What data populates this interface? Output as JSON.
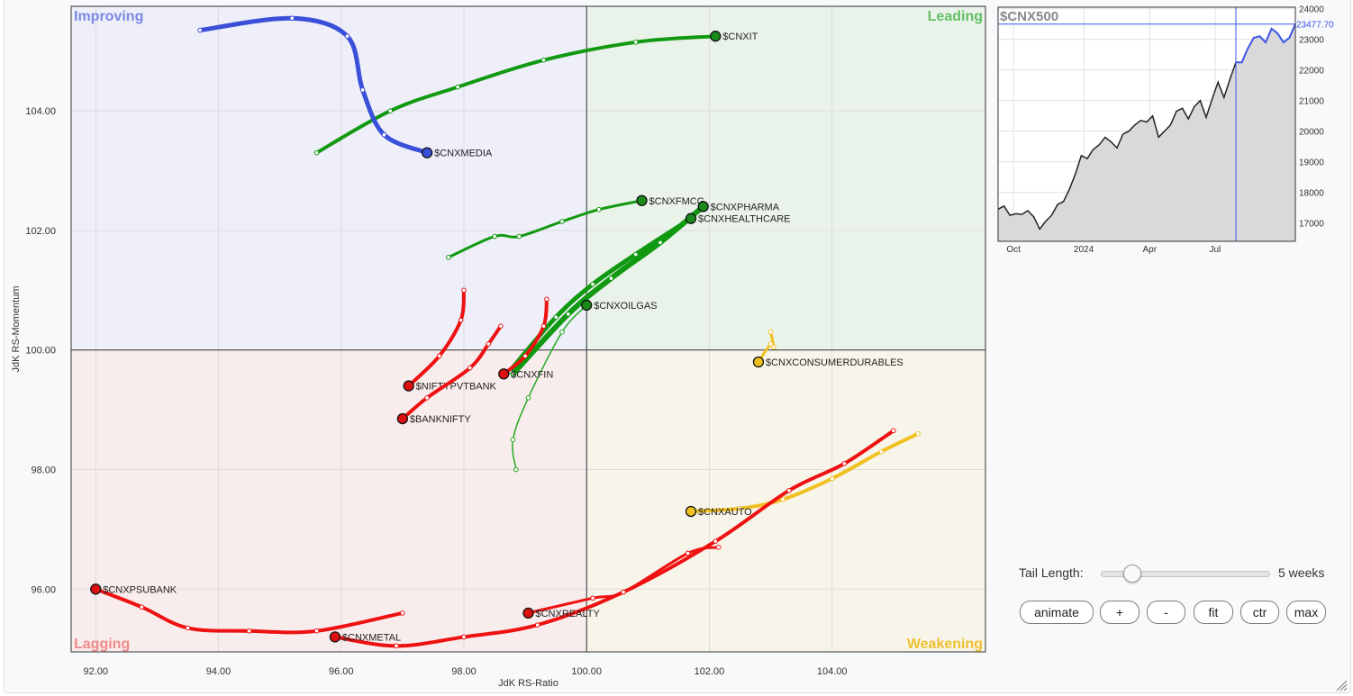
{
  "chart_data": {
    "type": "scatter",
    "subtype": "relative-rotation-graph",
    "xlabel": "JdK RS-Ratio",
    "ylabel": "JdK RS-Momentum",
    "xlim": [
      91.6,
      106.5
    ],
    "ylim": [
      94.95,
      105.75
    ],
    "x_ticks": [
      92,
      94,
      96,
      98,
      100,
      102,
      104
    ],
    "y_ticks": [
      96,
      98,
      100,
      102,
      104
    ],
    "x_tick_labels": [
      "92.00",
      "94.00",
      "96.00",
      "98.00",
      "100.00",
      "102.00",
      "104.00"
    ],
    "y_tick_labels": [
      "96.00",
      "98.00",
      "100.00",
      "102.00",
      "104.00"
    ],
    "center": [
      100,
      100
    ],
    "grid": true,
    "quadrants": [
      {
        "name": "Improving",
        "position": "top-left",
        "fill": "#eeeff9",
        "text_color": "#7b88e6"
      },
      {
        "name": "Leading",
        "position": "top-right",
        "fill": "#eaf3ea",
        "text_color": "#64c064"
      },
      {
        "name": "Lagging",
        "position": "bottom-left",
        "fill": "#f9ecec",
        "text_color": "#f08a8a"
      },
      {
        "name": "Weakening",
        "position": "bottom-right",
        "fill": "#f7f5ea",
        "text_color": "#f0c030"
      }
    ],
    "series": [
      {
        "name": "$CNXIT",
        "color": "#119911",
        "dot": "#1a8a1a",
        "width": 4,
        "points": [
          [
            95.6,
            103.3
          ],
          [
            96.8,
            104.0
          ],
          [
            97.9,
            104.4
          ],
          [
            99.3,
            104.85
          ],
          [
            100.8,
            105.15
          ],
          [
            102.1,
            105.25
          ]
        ]
      },
      {
        "name": "$CNXMEDIA",
        "color": "#3a50d8",
        "dot": "#3a50d8",
        "width": 5,
        "points": [
          [
            93.7,
            105.35
          ],
          [
            95.2,
            105.55
          ],
          [
            96.1,
            105.25
          ],
          [
            96.35,
            104.35
          ],
          [
            96.7,
            103.6
          ],
          [
            97.4,
            103.3
          ]
        ]
      },
      {
        "name": "$CNXFMCG",
        "color": "#119911",
        "dot": "#1a8a1a",
        "width": 3,
        "points": [
          [
            97.75,
            101.55
          ],
          [
            98.5,
            101.9
          ],
          [
            98.9,
            101.9
          ],
          [
            99.6,
            102.15
          ],
          [
            100.2,
            102.35
          ],
          [
            100.9,
            102.5
          ]
        ]
      },
      {
        "name": "$CNXPHARMA",
        "color": "#119911",
        "dot": "#1a8a1a",
        "width": 6,
        "points": [
          [
            98.8,
            99.6
          ],
          [
            99.7,
            100.6
          ],
          [
            100.4,
            101.2
          ],
          [
            101.2,
            101.8
          ],
          [
            101.9,
            102.4
          ]
        ]
      },
      {
        "name": "$CNXHEALTHCARE",
        "color": "#119911",
        "dot": "#1a8a1a",
        "width": 5,
        "points": [
          [
            98.75,
            99.65
          ],
          [
            99.5,
            100.55
          ],
          [
            100.1,
            101.1
          ],
          [
            100.8,
            101.6
          ],
          [
            101.7,
            102.2
          ]
        ]
      },
      {
        "name": "$CNXOILGAS",
        "color": "#22aa22",
        "dot": "#1a8a1a",
        "width": 1.5,
        "points": [
          [
            98.85,
            98.0
          ],
          [
            98.8,
            98.5
          ],
          [
            99.05,
            99.2
          ],
          [
            99.6,
            100.3
          ],
          [
            100.0,
            100.75
          ]
        ]
      },
      {
        "name": "$CNXFIN",
        "color": "#ee1111",
        "dot": "#dd1111",
        "width": 4,
        "points": [
          [
            99.35,
            100.85
          ],
          [
            99.3,
            100.4
          ],
          [
            99.0,
            99.9
          ],
          [
            98.65,
            99.6
          ]
        ]
      },
      {
        "name": "$NIFTYPVTBANK",
        "color": "#ee1111",
        "dot": "#dd1111",
        "width": 4,
        "points": [
          [
            98.0,
            101.0
          ],
          [
            97.95,
            100.5
          ],
          [
            97.6,
            99.9
          ],
          [
            97.1,
            99.4
          ]
        ]
      },
      {
        "name": "$BANKNIFTY",
        "color": "#ee1111",
        "dot": "#dd1111",
        "width": 4,
        "points": [
          [
            98.6,
            100.4
          ],
          [
            98.4,
            100.1
          ],
          [
            98.1,
            99.7
          ],
          [
            97.4,
            99.2
          ],
          [
            97.0,
            98.85
          ]
        ]
      },
      {
        "name": "$CNXCONSUMERDURABLES",
        "color": "#f0c020",
        "dot": "#f0c020",
        "width": 3,
        "points": [
          [
            103.0,
            100.3
          ],
          [
            103.05,
            100.05
          ],
          [
            103.0,
            100.1
          ],
          [
            102.8,
            99.8
          ]
        ]
      },
      {
        "name": "$CNXAUTO",
        "color": "#f0c020",
        "dot": "#f0c020",
        "width": 4,
        "points": [
          [
            105.4,
            98.6
          ],
          [
            104.8,
            98.3
          ],
          [
            104.0,
            97.85
          ],
          [
            103.2,
            97.5
          ],
          [
            102.5,
            97.35
          ],
          [
            101.7,
            97.3
          ]
        ]
      },
      {
        "name": "$CNXPSUBANK",
        "color": "#ee1111",
        "dot": "#dd1111",
        "width": 4,
        "points": [
          [
            97.0,
            95.6
          ],
          [
            95.6,
            95.3
          ],
          [
            94.5,
            95.3
          ],
          [
            93.5,
            95.35
          ],
          [
            92.75,
            95.7
          ],
          [
            92.0,
            96.0
          ]
        ]
      },
      {
        "name": "$CNXMETAL",
        "color": "#ee1111",
        "dot": "#dd1111",
        "width": 4,
        "points": [
          [
            105.0,
            98.65
          ],
          [
            104.2,
            98.1
          ],
          [
            103.3,
            97.65
          ],
          [
            102.1,
            96.8
          ],
          [
            100.6,
            95.95
          ],
          [
            99.2,
            95.4
          ],
          [
            98.0,
            95.2
          ],
          [
            96.9,
            95.05
          ],
          [
            95.9,
            95.2
          ]
        ]
      },
      {
        "name": "$CNXREALTY",
        "color": "#ee1111",
        "dot": "#dd1111",
        "width": 3,
        "points": [
          [
            102.15,
            96.7
          ],
          [
            101.65,
            96.6
          ],
          [
            100.6,
            95.95
          ],
          [
            100.1,
            95.85
          ],
          [
            99.05,
            95.6
          ]
        ]
      }
    ],
    "mini_chart": {
      "title": "$CNX500",
      "last_value": "23477.70",
      "y_ticks": [
        17000,
        18000,
        19000,
        20000,
        21000,
        22000,
        23000,
        24000
      ],
      "y_tick_labels": [
        "17000",
        "18000",
        "19000",
        "20000",
        "21000",
        "22000",
        "23000",
        "24000"
      ],
      "ylim": [
        16400,
        24050
      ],
      "x_labels": [
        "Oct",
        "2024",
        "Apr",
        "Jul"
      ],
      "x_label_index": [
        2.6,
        14.4,
        25.5,
        36.5
      ],
      "tail_start_index": 40,
      "values": [
        17450,
        17550,
        17250,
        17300,
        17280,
        17400,
        17200,
        16800,
        17050,
        17250,
        17600,
        17700,
        18100,
        18600,
        19200,
        19100,
        19400,
        19550,
        19800,
        19650,
        19450,
        19900,
        20000,
        20200,
        20350,
        20300,
        20500,
        19800,
        20000,
        20200,
        20650,
        20750,
        20400,
        20800,
        21000,
        20450,
        21050,
        21600,
        21100,
        21700,
        22250,
        22250,
        22700,
        23050,
        23100,
        22900,
        23350,
        23200,
        22900,
        23050,
        23500
      ]
    }
  },
  "controls": {
    "tail_label": "Tail Length:",
    "tail_value": "5 weeks",
    "tail_fraction": 0.15,
    "buttons": {
      "animate": "animate",
      "plus": "+",
      "minus": "-",
      "fit": "fit",
      "ctr": "ctr",
      "max": "max"
    }
  }
}
